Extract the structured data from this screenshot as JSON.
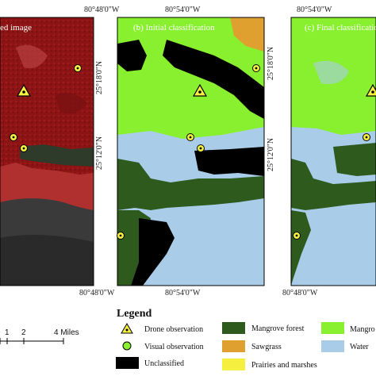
{
  "panels": [
    {
      "title": "(a) Infrared image"
    },
    {
      "title": "(b) Initial classification"
    },
    {
      "title": "(c) Final classification"
    }
  ],
  "coords": {
    "top_lon_a": "80°48'0\"W",
    "top_lon_b": "80°54'0\"W",
    "top_lon_c": "80°54'0\"W",
    "bottom_lon_a": "80°48'0\"W",
    "bottom_lon_b": "80°54'0\"W",
    "bottom_lon_c": "80°48'0\"W",
    "lat_18_a": "25°18'0\"N",
    "lat_12_a": "25°12'0\"N",
    "lat_18_b": "25°18'0\"N",
    "lat_12_b": "25°12'0\"N"
  },
  "legend": {
    "title": "Legend",
    "items": [
      {
        "label": "Drone observation",
        "symbol": "triangle"
      },
      {
        "label": "Visual observation",
        "symbol": "circle"
      },
      {
        "label": "Unclassified",
        "color": "#000000"
      },
      {
        "label": "Mangrove forest",
        "color": "#2e5a1e"
      },
      {
        "label": "Sawgrass",
        "color": "#e0a030"
      },
      {
        "label": "Prairies and marshes",
        "color": "#f5f040"
      },
      {
        "label": "Mangro",
        "color": "#88f02e"
      },
      {
        "label": "Water",
        "color": "#a9cde9"
      }
    ]
  },
  "scale": {
    "ticks": [
      "1",
      "2",
      "4 Miles"
    ]
  },
  "colors": {
    "infrared": "#8c1414",
    "mangrove_scrub": "#88f02e",
    "mangrove_forest": "#2e5a1e",
    "water": "#a9cde9",
    "unclassified": "#000000",
    "sawgrass": "#e0a030",
    "marker_yellow": "#f5f040"
  }
}
